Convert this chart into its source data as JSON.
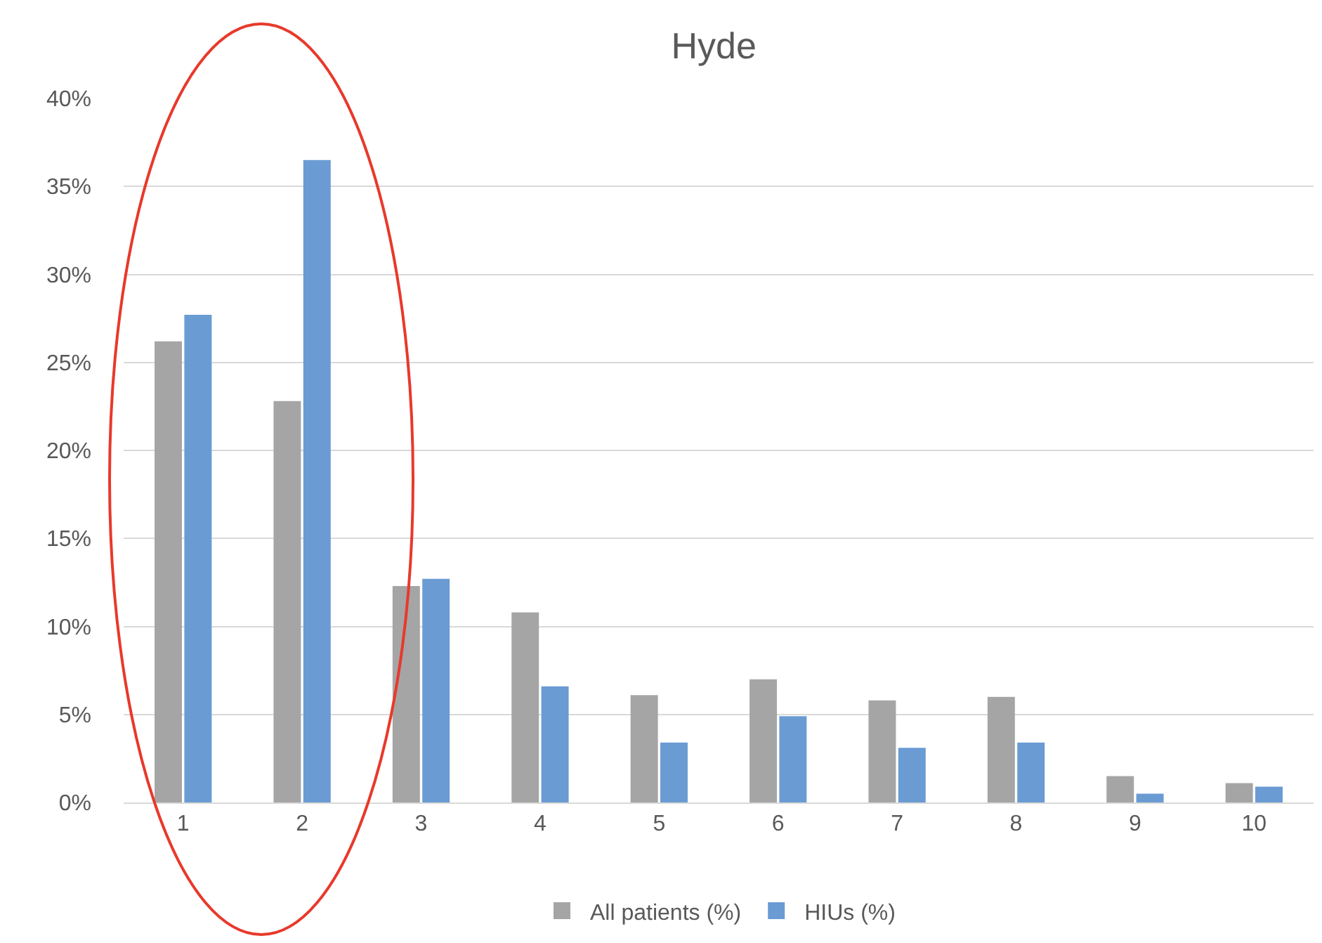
{
  "chart_data": {
    "type": "bar",
    "title": "Hyde",
    "categories": [
      "1",
      "2",
      "3",
      "4",
      "5",
      "6",
      "7",
      "8",
      "9",
      "10"
    ],
    "series": [
      {
        "name": "All patients (%)",
        "color": "#a5a5a5",
        "values": [
          26.2,
          22.8,
          12.3,
          10.8,
          6.1,
          7.0,
          5.8,
          6.0,
          1.5,
          1.1
        ]
      },
      {
        "name": "HIUs (%)",
        "color": "#6a9bd3",
        "values": [
          27.7,
          36.5,
          12.7,
          6.6,
          3.4,
          4.9,
          3.1,
          3.4,
          0.5,
          0.9
        ]
      }
    ],
    "ylim": [
      0,
      40
    ],
    "yticks": [
      {
        "value": 0,
        "label": "0%"
      },
      {
        "value": 5,
        "label": "5%"
      },
      {
        "value": 10,
        "label": "10%"
      },
      {
        "value": 15,
        "label": "15%"
      },
      {
        "value": 20,
        "label": "20%"
      },
      {
        "value": 25,
        "label": "25%"
      },
      {
        "value": 30,
        "label": "30%"
      },
      {
        "value": 35,
        "label": "35%"
      },
      {
        "value": 40,
        "label": "40%"
      }
    ],
    "grid": "y",
    "legend": "bottom"
  }
}
